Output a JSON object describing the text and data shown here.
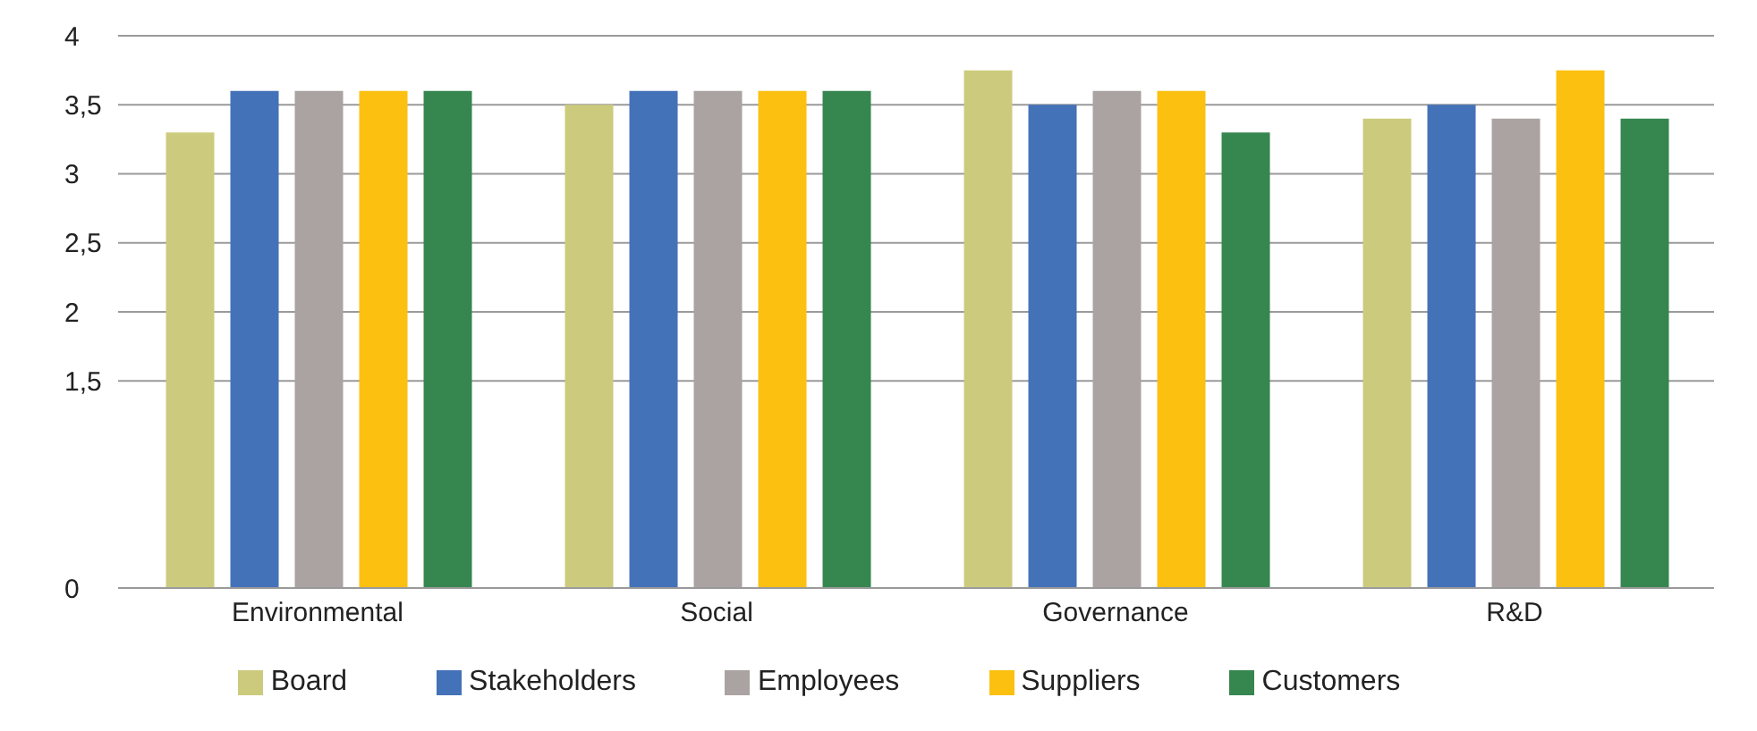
{
  "chart_data": {
    "type": "bar",
    "categories": [
      "Environmental",
      "Social",
      "Governance",
      "R&D"
    ],
    "series": [
      {
        "name": "Board",
        "color": "#cccb7d",
        "values": [
          3.3,
          3.5,
          3.75,
          3.4
        ]
      },
      {
        "name": "Stakeholders",
        "color": "#4472b8",
        "values": [
          3.6,
          3.6,
          3.5,
          3.5
        ]
      },
      {
        "name": "Employees",
        "color": "#aba2a2",
        "values": [
          3.6,
          3.6,
          3.6,
          3.4
        ]
      },
      {
        "name": "Suppliers",
        "color": "#fcc010",
        "values": [
          3.6,
          3.6,
          3.6,
          3.75
        ]
      },
      {
        "name": "Customers",
        "color": "#36864f",
        "values": [
          3.6,
          3.6,
          3.3,
          3.4
        ]
      }
    ],
    "ylim": [
      0,
      4
    ],
    "yticks": [
      0,
      {
        "value": 1.5,
        "label": "1,5"
      },
      {
        "value": 2,
        "label": "2"
      },
      {
        "value": 2.5,
        "label": "2,5"
      },
      {
        "value": 3,
        "label": "3"
      },
      {
        "value": 3.5,
        "label": "3,5"
      },
      {
        "value": 4,
        "label": "4"
      }
    ],
    "grid": "y",
    "legend": "bottom"
  }
}
